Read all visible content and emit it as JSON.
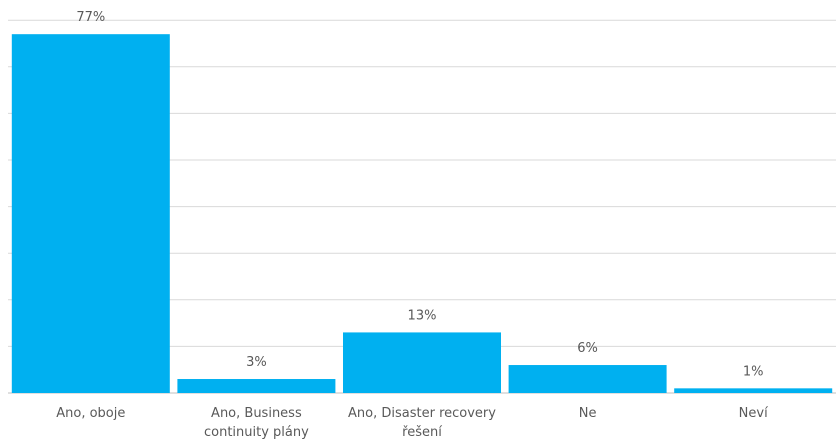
{
  "chart_data": {
    "type": "bar",
    "title": "",
    "xlabel": "",
    "ylabel": "",
    "categories": [
      [
        "Ano, oboje"
      ],
      [
        "Ano, Business",
        "continuity plány"
      ],
      [
        "Ano, Disaster recovery",
        "řešení"
      ],
      [
        "Ne"
      ],
      [
        "Neví"
      ]
    ],
    "values": [
      77,
      3,
      13,
      6,
      1
    ],
    "data_labels": [
      "77%",
      "3%",
      "13%",
      "6%",
      "1%"
    ],
    "ylim": [
      0,
      80
    ],
    "grid_step": 10,
    "grid": true,
    "legend": "none",
    "bar_color": "#00B0F0"
  }
}
